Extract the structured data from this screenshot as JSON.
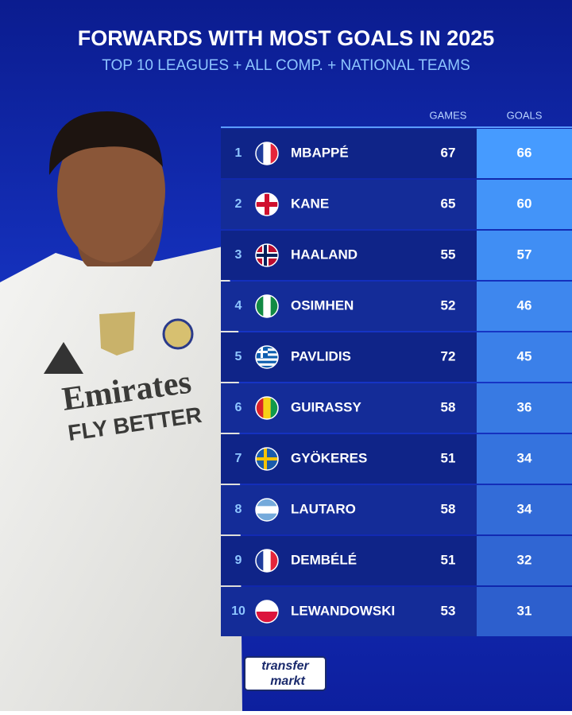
{
  "header": {
    "title": "FORWARDS WITH MOST GOALS IN 2025",
    "subtitle": "TOP 10 LEAGUES + ALL COMP. + NATIONAL TEAMS"
  },
  "table": {
    "columns": [
      "GAMES",
      "GOALS"
    ],
    "rows": [
      {
        "rank": 1,
        "name": "MBAPPÉ",
        "games": 67,
        "goals": 66
      },
      {
        "rank": 2,
        "name": "KANE",
        "games": 65,
        "goals": 60
      },
      {
        "rank": 3,
        "name": "HAALAND",
        "games": 55,
        "goals": 57
      },
      {
        "rank": 4,
        "name": "OSIMHEN",
        "games": 52,
        "goals": 46
      },
      {
        "rank": 5,
        "name": "PAVLIDIS",
        "games": 72,
        "goals": 45
      },
      {
        "rank": 6,
        "name": "GUIRASSY",
        "games": 58,
        "goals": 36
      },
      {
        "rank": 7,
        "name": "GYÖKERES",
        "games": 51,
        "goals": 34
      },
      {
        "rank": 8,
        "name": "LAUTARO",
        "games": 58,
        "goals": 34
      },
      {
        "rank": 9,
        "name": "DEMBÉLÉ",
        "games": 51,
        "goals": 32
      },
      {
        "rank": 10,
        "name": "LEWANDOWSKI",
        "games": 53,
        "goals": 31
      }
    ]
  },
  "photo": {
    "sponsor": "Emirates",
    "tagline": "FLY BETTER"
  },
  "logo": {
    "line1": "transfer",
    "line2": "markt"
  }
}
